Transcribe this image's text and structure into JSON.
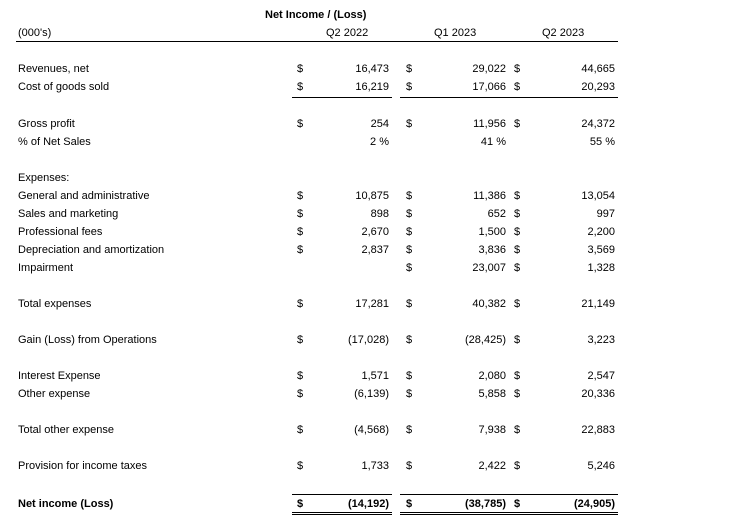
{
  "title": "Net Income / (Loss)",
  "units": "(000's)",
  "columns": [
    "Q2 2022",
    "Q1 2023",
    "Q2 2023"
  ],
  "currency_symbol": "$",
  "rows": [
    {
      "label": "Revenues, net",
      "cur": [
        true,
        true,
        true
      ],
      "values": [
        "16,473",
        "29,022",
        "44,665"
      ]
    },
    {
      "label": "Cost of goods sold",
      "cur": [
        true,
        true,
        true
      ],
      "values": [
        "16,219",
        "17,066",
        "20,293"
      ]
    },
    {
      "label": "Gross profit",
      "cur": [
        true,
        true,
        true
      ],
      "values": [
        "254",
        "11,956",
        "24,372"
      ]
    },
    {
      "label": "% of Net Sales",
      "cur": [
        false,
        false,
        false
      ],
      "values": [
        "2 %",
        "41 %",
        "55 %"
      ]
    },
    {
      "label": "Expenses:",
      "cur": [
        false,
        false,
        false
      ],
      "values": [
        "",
        "",
        ""
      ]
    },
    {
      "label": "General and administrative",
      "cur": [
        true,
        true,
        true
      ],
      "values": [
        "10,875",
        "11,386",
        "13,054"
      ]
    },
    {
      "label": "Sales and marketing",
      "cur": [
        true,
        true,
        true
      ],
      "values": [
        "898",
        "652",
        "997"
      ]
    },
    {
      "label": "Professional fees",
      "cur": [
        true,
        true,
        true
      ],
      "values": [
        "2,670",
        "1,500",
        "2,200"
      ]
    },
    {
      "label": "Depreciation and amortization",
      "cur": [
        true,
        true,
        true
      ],
      "values": [
        "2,837",
        "3,836",
        "3,569"
      ]
    },
    {
      "label": "Impairment",
      "cur": [
        false,
        true,
        true
      ],
      "values": [
        "",
        "23,007",
        "1,328"
      ]
    },
    {
      "label": "Total expenses",
      "cur": [
        true,
        true,
        true
      ],
      "values": [
        "17,281",
        "40,382",
        "21,149"
      ]
    },
    {
      "label": "Gain (Loss) from Operations",
      "cur": [
        true,
        true,
        true
      ],
      "values": [
        "(17,028)",
        "(28,425)",
        "3,223"
      ]
    },
    {
      "label": "Interest Expense",
      "cur": [
        true,
        true,
        true
      ],
      "values": [
        "1,571",
        "2,080",
        "2,547"
      ]
    },
    {
      "label": "Other expense",
      "cur": [
        true,
        true,
        true
      ],
      "values": [
        "(6,139)",
        "5,858",
        "20,336"
      ]
    },
    {
      "label": "Total other expense",
      "cur": [
        true,
        true,
        true
      ],
      "values": [
        "(4,568)",
        "7,938",
        "22,883"
      ]
    },
    {
      "label": "Provision for income taxes",
      "cur": [
        true,
        true,
        true
      ],
      "values": [
        "1,733",
        "2,422",
        "5,246"
      ]
    },
    {
      "label": "Net income (Loss)",
      "cur": [
        true,
        true,
        true
      ],
      "values": [
        "(14,192)",
        "(38,785)",
        "(24,905)"
      ],
      "bold": true
    }
  ]
}
